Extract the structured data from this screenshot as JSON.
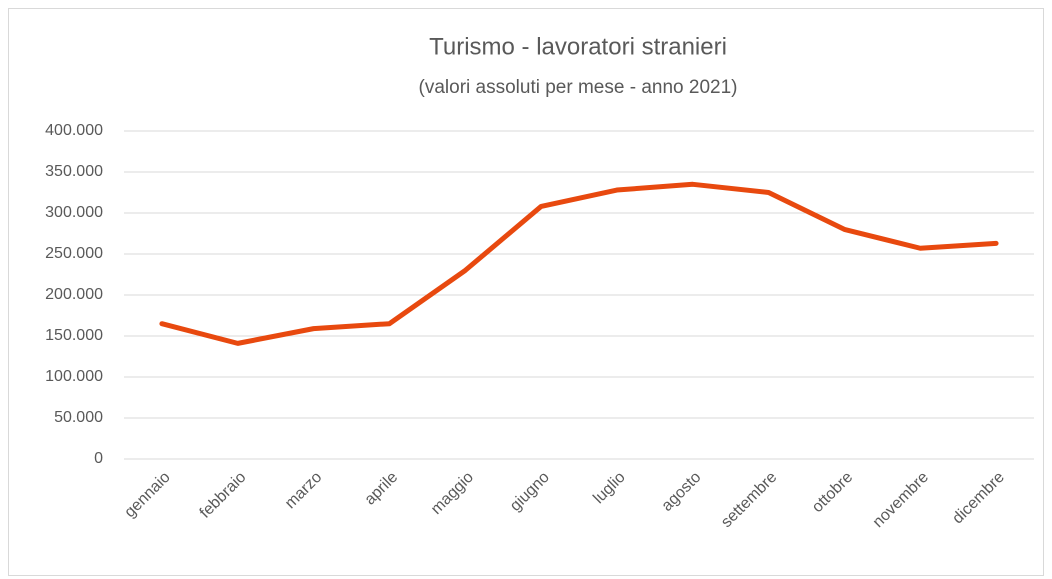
{
  "chart_data": {
    "type": "line",
    "title": "Turismo - lavoratori stranieri",
    "subtitle": "(valori assoluti per mese - anno 2021)",
    "categories": [
      "gennaio",
      "febbraio",
      "marzo",
      "aprile",
      "maggio",
      "giugno",
      "luglio",
      "agosto",
      "settembre",
      "ottobre",
      "novembre",
      "dicembre"
    ],
    "series": [
      {
        "name": "Turismo - lavoratori stranieri",
        "color": "#e8490f",
        "values": [
          165000,
          141000,
          159000,
          165000,
          230000,
          308000,
          328000,
          335000,
          325000,
          280000,
          257000,
          263000
        ]
      }
    ],
    "ylim": [
      0,
      400000
    ],
    "yticks": [
      0,
      {
        "value": 50000,
        "label": "50.000"
      },
      {
        "value": 100000,
        "label": "100.000"
      },
      {
        "value": 150000,
        "label": "150.000"
      },
      {
        "value": 200000,
        "label": "200.000"
      },
      {
        "value": 250000,
        "label": "250.000"
      },
      {
        "value": 300000,
        "label": "300.000"
      },
      {
        "value": 350000,
        "label": "350.000"
      },
      {
        "value": 400000,
        "label": "400.000"
      }
    ],
    "grid": true
  }
}
